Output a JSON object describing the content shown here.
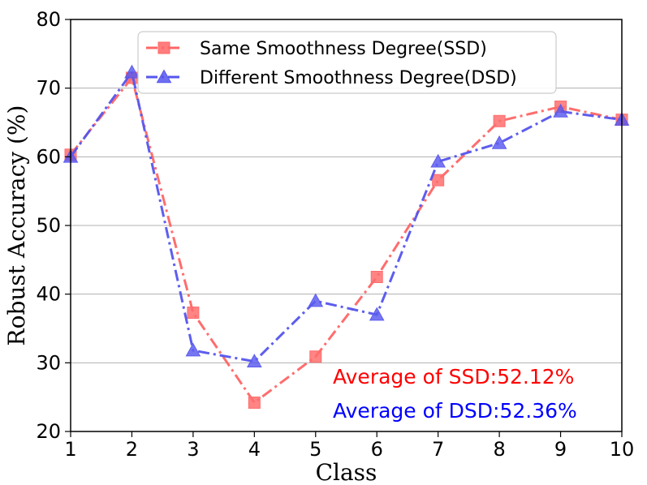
{
  "chart_data": {
    "type": "line",
    "x": [
      1,
      2,
      3,
      4,
      5,
      6,
      7,
      8,
      9,
      10
    ],
    "xlim": [
      1,
      10
    ],
    "ylim": [
      20,
      80
    ],
    "xticks": [
      1,
      2,
      3,
      4,
      5,
      6,
      7,
      8,
      9,
      10
    ],
    "yticks": [
      20,
      30,
      40,
      50,
      60,
      70,
      80
    ],
    "xlabel": "Class",
    "ylabel": "Robust Accuracy (%)",
    "grid": "horizontal",
    "legend_position": "top-center",
    "series": [
      {
        "name": "Same Smoothness Degree(SSD)",
        "color": "#ff6666",
        "marker": "square",
        "linestyle": "dashdot",
        "values": [
          60.3,
          71.5,
          37.3,
          24.2,
          30.9,
          42.5,
          56.6,
          65.2,
          67.3,
          65.4
        ]
      },
      {
        "name": "Different Smoothness Degree(DSD)",
        "color": "#5555ee",
        "marker": "triangle",
        "linestyle": "dashdot",
        "values": [
          60.0,
          72.3,
          31.8,
          30.2,
          39.0,
          37.0,
          59.3,
          62.0,
          66.6,
          65.4
        ]
      }
    ],
    "annotations": [
      {
        "text": "Average of SSD:52.12%",
        "color": "#ff0000"
      },
      {
        "text": "Average of DSD:52.36%",
        "color": "#0000ff"
      }
    ]
  }
}
